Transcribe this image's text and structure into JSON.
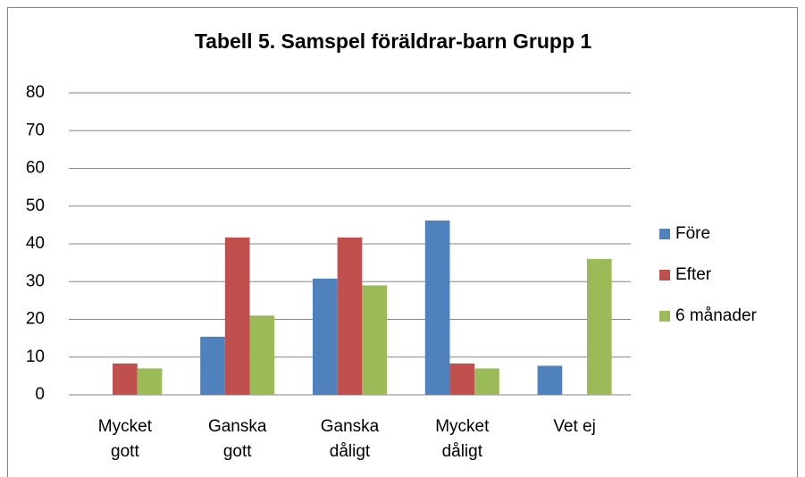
{
  "chart_data": {
    "type": "bar",
    "title": "Tabell 5. Samspel föräldrar-barn Grupp 1",
    "categories": [
      [
        "Mycket",
        "gott"
      ],
      [
        "Ganska",
        "gott"
      ],
      [
        "Ganska",
        "dåligt"
      ],
      [
        "Mycket",
        "dåligt"
      ],
      [
        "Vet ej"
      ]
    ],
    "series": [
      {
        "name": "Före",
        "color": "#4f81bd",
        "values": [
          0,
          15.4,
          30.8,
          46.2,
          7.7
        ]
      },
      {
        "name": "Efter",
        "color": "#c0504d",
        "values": [
          8.3,
          41.7,
          41.7,
          8.3,
          0
        ]
      },
      {
        "name": "6 månader",
        "color": "#9bbb59",
        "values": [
          7,
          21,
          29,
          7,
          36
        ]
      }
    ],
    "ylim": [
      0,
      80
    ],
    "yticks": [
      0,
      10,
      20,
      30,
      40,
      50,
      60,
      70,
      80
    ],
    "grid": true,
    "legend": "right"
  }
}
